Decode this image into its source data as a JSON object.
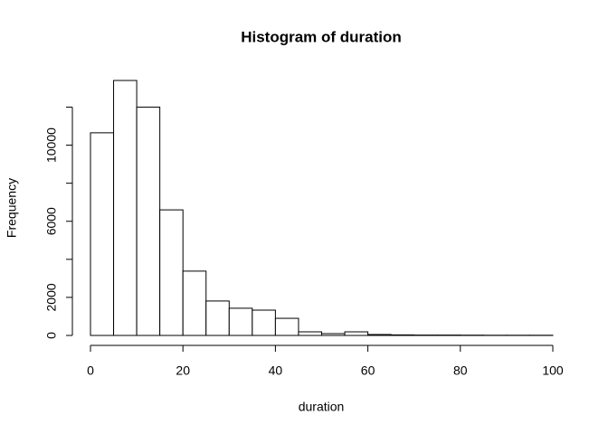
{
  "chart_data": {
    "type": "histogram",
    "title": "Histogram of duration",
    "x_label": "duration",
    "y_label": "Frequency",
    "bins": [
      0,
      5,
      10,
      15,
      20,
      25,
      30,
      35,
      40,
      45,
      50,
      55,
      60,
      65,
      70,
      75,
      80,
      85,
      90,
      95,
      100
    ],
    "values": [
      10650,
      13400,
      12000,
      6600,
      3380,
      1810,
      1430,
      1330,
      900,
      190,
      95,
      190,
      50,
      30,
      20,
      20,
      15,
      10,
      10,
      10
    ],
    "color": "#ffffff",
    "xlim": [
      0,
      100
    ],
    "xticks": [
      0,
      20,
      40,
      60,
      80,
      100
    ],
    "ylim": [
      0,
      13400
    ],
    "yticks": [
      0,
      2000,
      6000,
      10000
    ],
    "yticks_unlabeled": [
      4000,
      8000,
      12000
    ]
  }
}
